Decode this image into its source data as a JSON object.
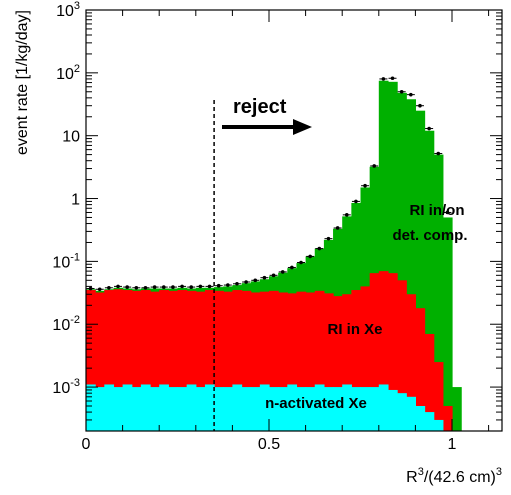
{
  "chart_data": {
    "type": "area",
    "log_y": true,
    "grid": false,
    "xlabel_base": "R",
    "xlabel_sup1": "3",
    "xlabel_mid": "/(42.6 cm)",
    "xlabel_sup2": "3",
    "ylabel": "event rate [1/kg/day]",
    "xlim": [
      0,
      1.1
    ],
    "ylim": [
      0.0002,
      1000
    ],
    "x_ticks": [
      {
        "value": 0,
        "label": "0"
      },
      {
        "value": 0.5,
        "label": "0.5"
      },
      {
        "value": 1,
        "label": "1"
      }
    ],
    "y_ticks": [
      {
        "value": 0.001,
        "base": "10",
        "exp": "-3"
      },
      {
        "value": 0.01,
        "base": "10",
        "exp": "-2"
      },
      {
        "value": 0.1,
        "base": "10",
        "exp": "-1"
      },
      {
        "value": 1,
        "base": "1",
        "exp": ""
      },
      {
        "value": 10,
        "base": "10",
        "exp": ""
      },
      {
        "value": 100,
        "base": "10",
        "exp": "2"
      },
      {
        "value": 1000,
        "base": "10",
        "exp": "3"
      }
    ],
    "bin_width": 0.025,
    "bins_start": 0,
    "series": [
      {
        "label": "RI in/on det. comp.",
        "label_line1": "RI in/on",
        "label_line2": "det. comp.",
        "color": "#00b000",
        "values": [
          0.036,
          0.034,
          0.036,
          0.038,
          0.037,
          0.036,
          0.037,
          0.037,
          0.037,
          0.037,
          0.038,
          0.037,
          0.038,
          0.038,
          0.039,
          0.04,
          0.042,
          0.045,
          0.048,
          0.052,
          0.058,
          0.066,
          0.078,
          0.094,
          0.12,
          0.16,
          0.22,
          0.33,
          0.52,
          0.85,
          1.5,
          3.2,
          75,
          72,
          48,
          38,
          25,
          12,
          5,
          0.5,
          0.001
        ]
      },
      {
        "label": "RI in Xe",
        "color": "#ff0000",
        "values": [
          0.035,
          0.032,
          0.035,
          0.036,
          0.035,
          0.034,
          0.035,
          0.033,
          0.035,
          0.034,
          0.035,
          0.034,
          0.033,
          0.035,
          0.034,
          0.033,
          0.035,
          0.034,
          0.032,
          0.033,
          0.034,
          0.032,
          0.031,
          0.033,
          0.032,
          0.034,
          0.031,
          0.028,
          0.03,
          0.035,
          0.04,
          0.065,
          0.07,
          0.065,
          0.05,
          0.03,
          0.018,
          0.007,
          0.0025,
          0.0005,
          0.0002
        ]
      },
      {
        "label": "n-activated Xe",
        "color": "#00ffff",
        "values": [
          0.0011,
          0.001,
          0.0011,
          0.001,
          0.0011,
          0.001,
          0.0011,
          0.001,
          0.0011,
          0.001,
          0.001,
          0.0011,
          0.001,
          0.0011,
          0.001,
          0.001,
          0.0011,
          0.001,
          0.001,
          0.0011,
          0.001,
          0.001,
          0.0011,
          0.001,
          0.001,
          0.0011,
          0.001,
          0.001,
          0.0011,
          0.001,
          0.001,
          0.001,
          0.0011,
          0.0009,
          0.0008,
          0.0007,
          0.0005,
          0.0004,
          0.0003,
          0.0002,
          0.0002
        ]
      }
    ],
    "data_points": {
      "x": [
        0.0125,
        0.0375,
        0.0625,
        0.0875,
        0.1125,
        0.1375,
        0.1625,
        0.1875,
        0.2125,
        0.2375,
        0.2625,
        0.2875,
        0.3125,
        0.3375,
        0.3625,
        0.3875,
        0.4125,
        0.4375,
        0.4625,
        0.4875,
        0.5125,
        0.5375,
        0.5625,
        0.5875,
        0.6125,
        0.6375,
        0.6625,
        0.6875,
        0.7125,
        0.7375,
        0.7625,
        0.7875,
        0.8125,
        0.8375,
        0.8625,
        0.8875,
        0.9125,
        0.9375,
        0.9625,
        0.9875
      ],
      "y": [
        0.037,
        0.036,
        0.038,
        0.04,
        0.039,
        0.038,
        0.038,
        0.039,
        0.039,
        0.039,
        0.04,
        0.039,
        0.04,
        0.04,
        0.041,
        0.042,
        0.044,
        0.047,
        0.05,
        0.055,
        0.06,
        0.068,
        0.08,
        0.096,
        0.12,
        0.16,
        0.23,
        0.34,
        0.55,
        0.9,
        1.6,
        3.3,
        80,
        82,
        50,
        45,
        30,
        13,
        5.2,
        0.6
      ]
    },
    "cut_line_x": 0.35,
    "annotation": "reject",
    "label_in_xe": "RI in Xe",
    "label_n_act": "n-activated Xe"
  }
}
